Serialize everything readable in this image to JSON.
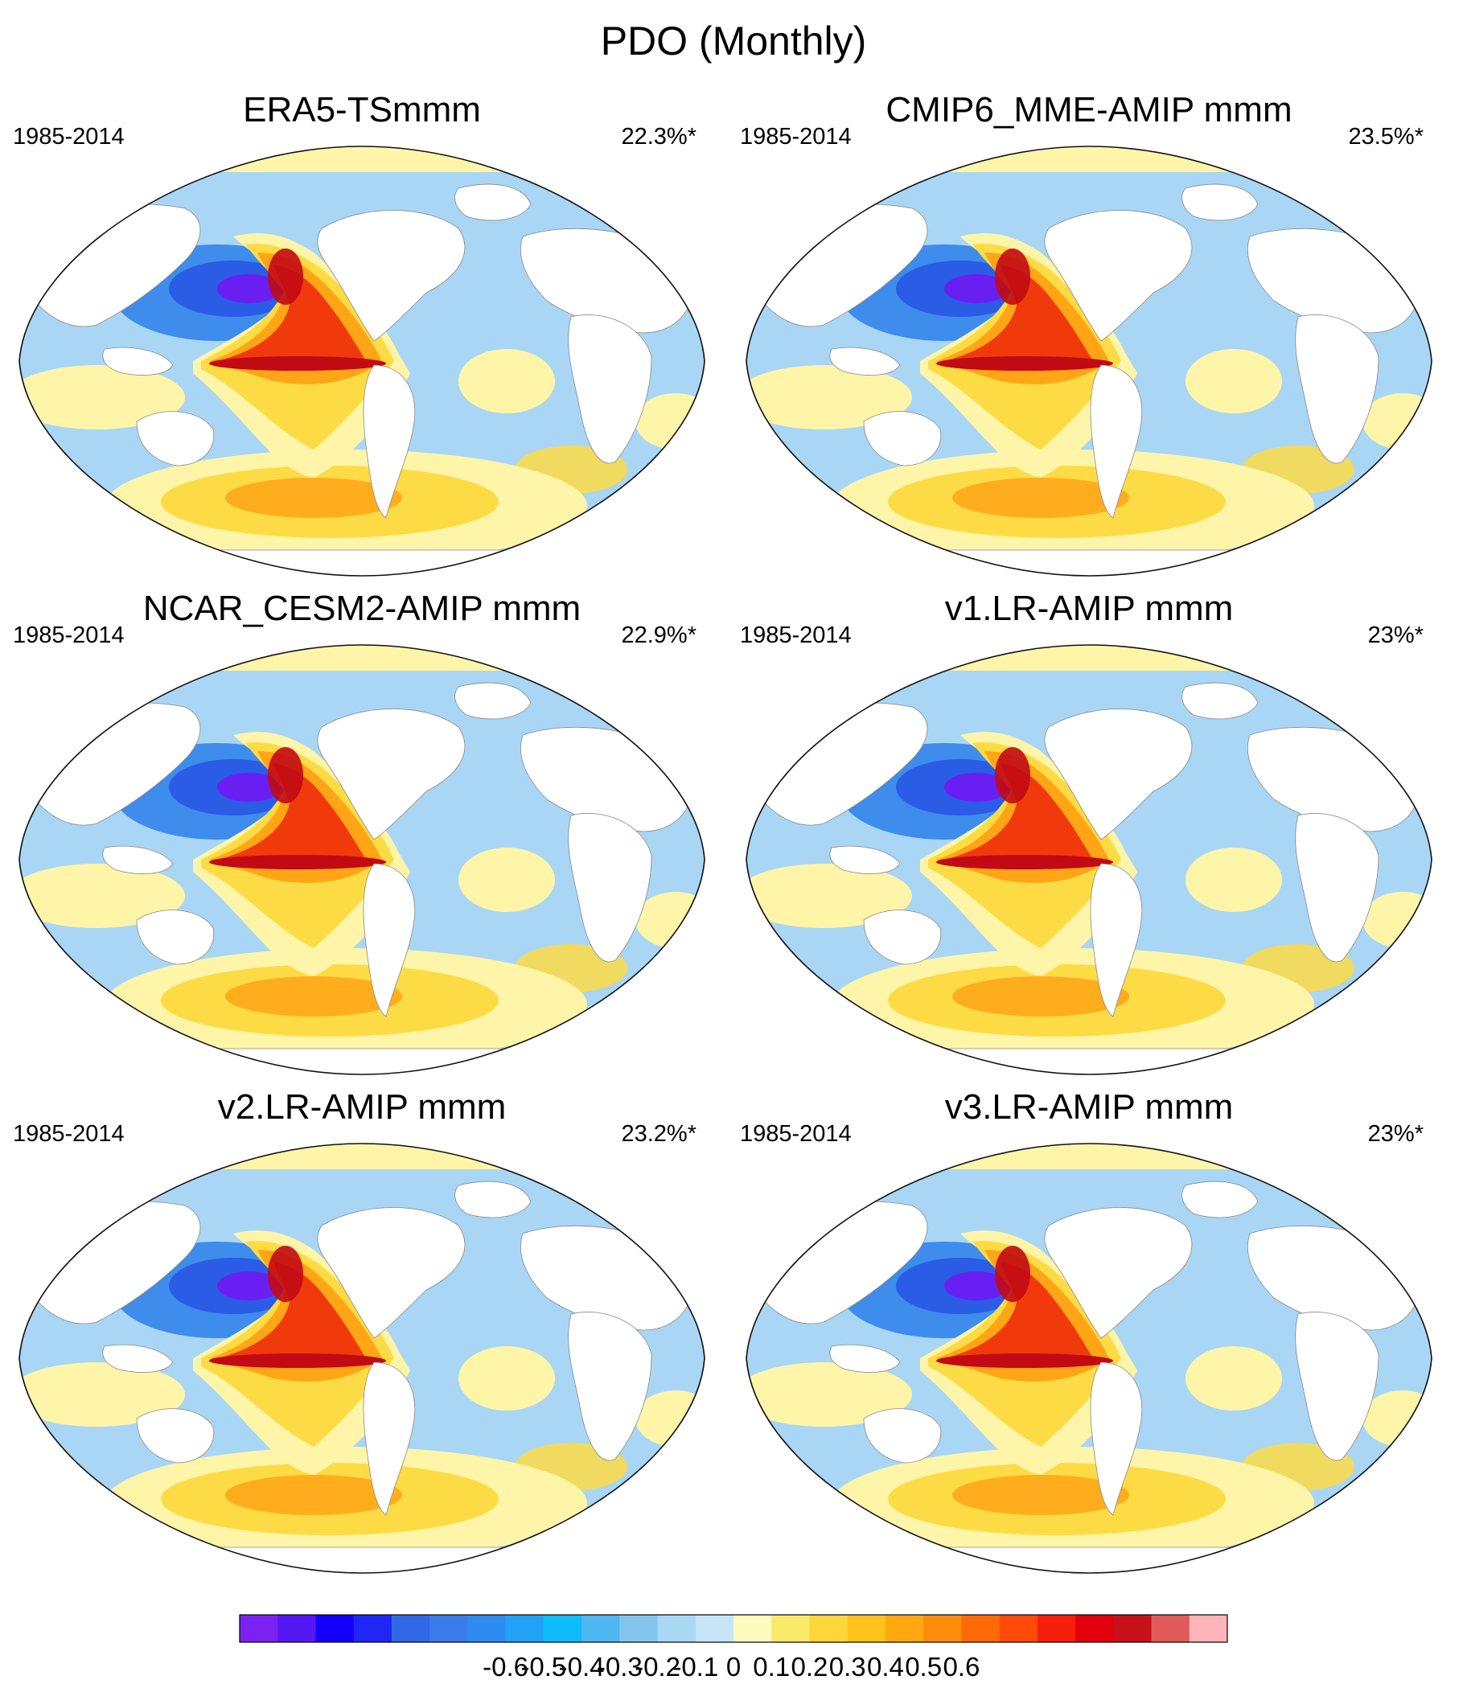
{
  "figure": {
    "title": "PDO (Monthly)"
  },
  "panels": [
    {
      "title": "ERA5-TSmmm",
      "period": "1985-2014",
      "variance": "22.3%*"
    },
    {
      "title": "CMIP6_MME-AMIP  mmm",
      "period": "1985-2014",
      "variance": "23.5%*"
    },
    {
      "title": "NCAR_CESM2-AMIP  mmm",
      "period": "1985-2014",
      "variance": "22.9%*"
    },
    {
      "title": "v1.LR-AMIP  mmm",
      "period": "1985-2014",
      "variance": "23%*"
    },
    {
      "title": "v2.LR-AMIP  mmm",
      "period": "1985-2014",
      "variance": "23.2%*"
    },
    {
      "title": "v3.LR-AMIP  mmm",
      "period": "1985-2014",
      "variance": "23%*"
    }
  ],
  "colorbar": {
    "labels": [
      "-0.6",
      "-0.5",
      "-0.4",
      "-0.3",
      "-0.2",
      "-0.1",
      "0",
      "0.1",
      "0.2",
      "0.3",
      "0.4",
      "0.5",
      "0.6"
    ],
    "colors": [
      "#7B22F2",
      "#5617F5",
      "#1400FF",
      "#2027F5",
      "#3168E6",
      "#3A7BEA",
      "#2E8BF2",
      "#22A1F6",
      "#0FBCFA",
      "#4EB6F0",
      "#82C6EE",
      "#A8D8F4",
      "#C6E6F7",
      "#FFFBBE",
      "#FBEA6A",
      "#FDD63E",
      "#FFC11B",
      "#FFA80F",
      "#FF8C0B",
      "#FF6A07",
      "#FF4A0A",
      "#F81E0A",
      "#E3000D",
      "#C8101A",
      "#E05A5A",
      "#FFB4B8"
    ],
    "palette": {
      "land": "#FFFFFF",
      "neg_strong": "#6A1FF2",
      "neg_mid": "#3E8CEB",
      "neg_weak": "#A9D6F5",
      "neg_faint": "#CBE7F8",
      "pos_faint": "#FFF5A8",
      "pos_weak": "#FDDB45",
      "pos_mid": "#FFA516",
      "pos_strong": "#F03A0C",
      "pos_max": "#C20A14"
    }
  }
}
